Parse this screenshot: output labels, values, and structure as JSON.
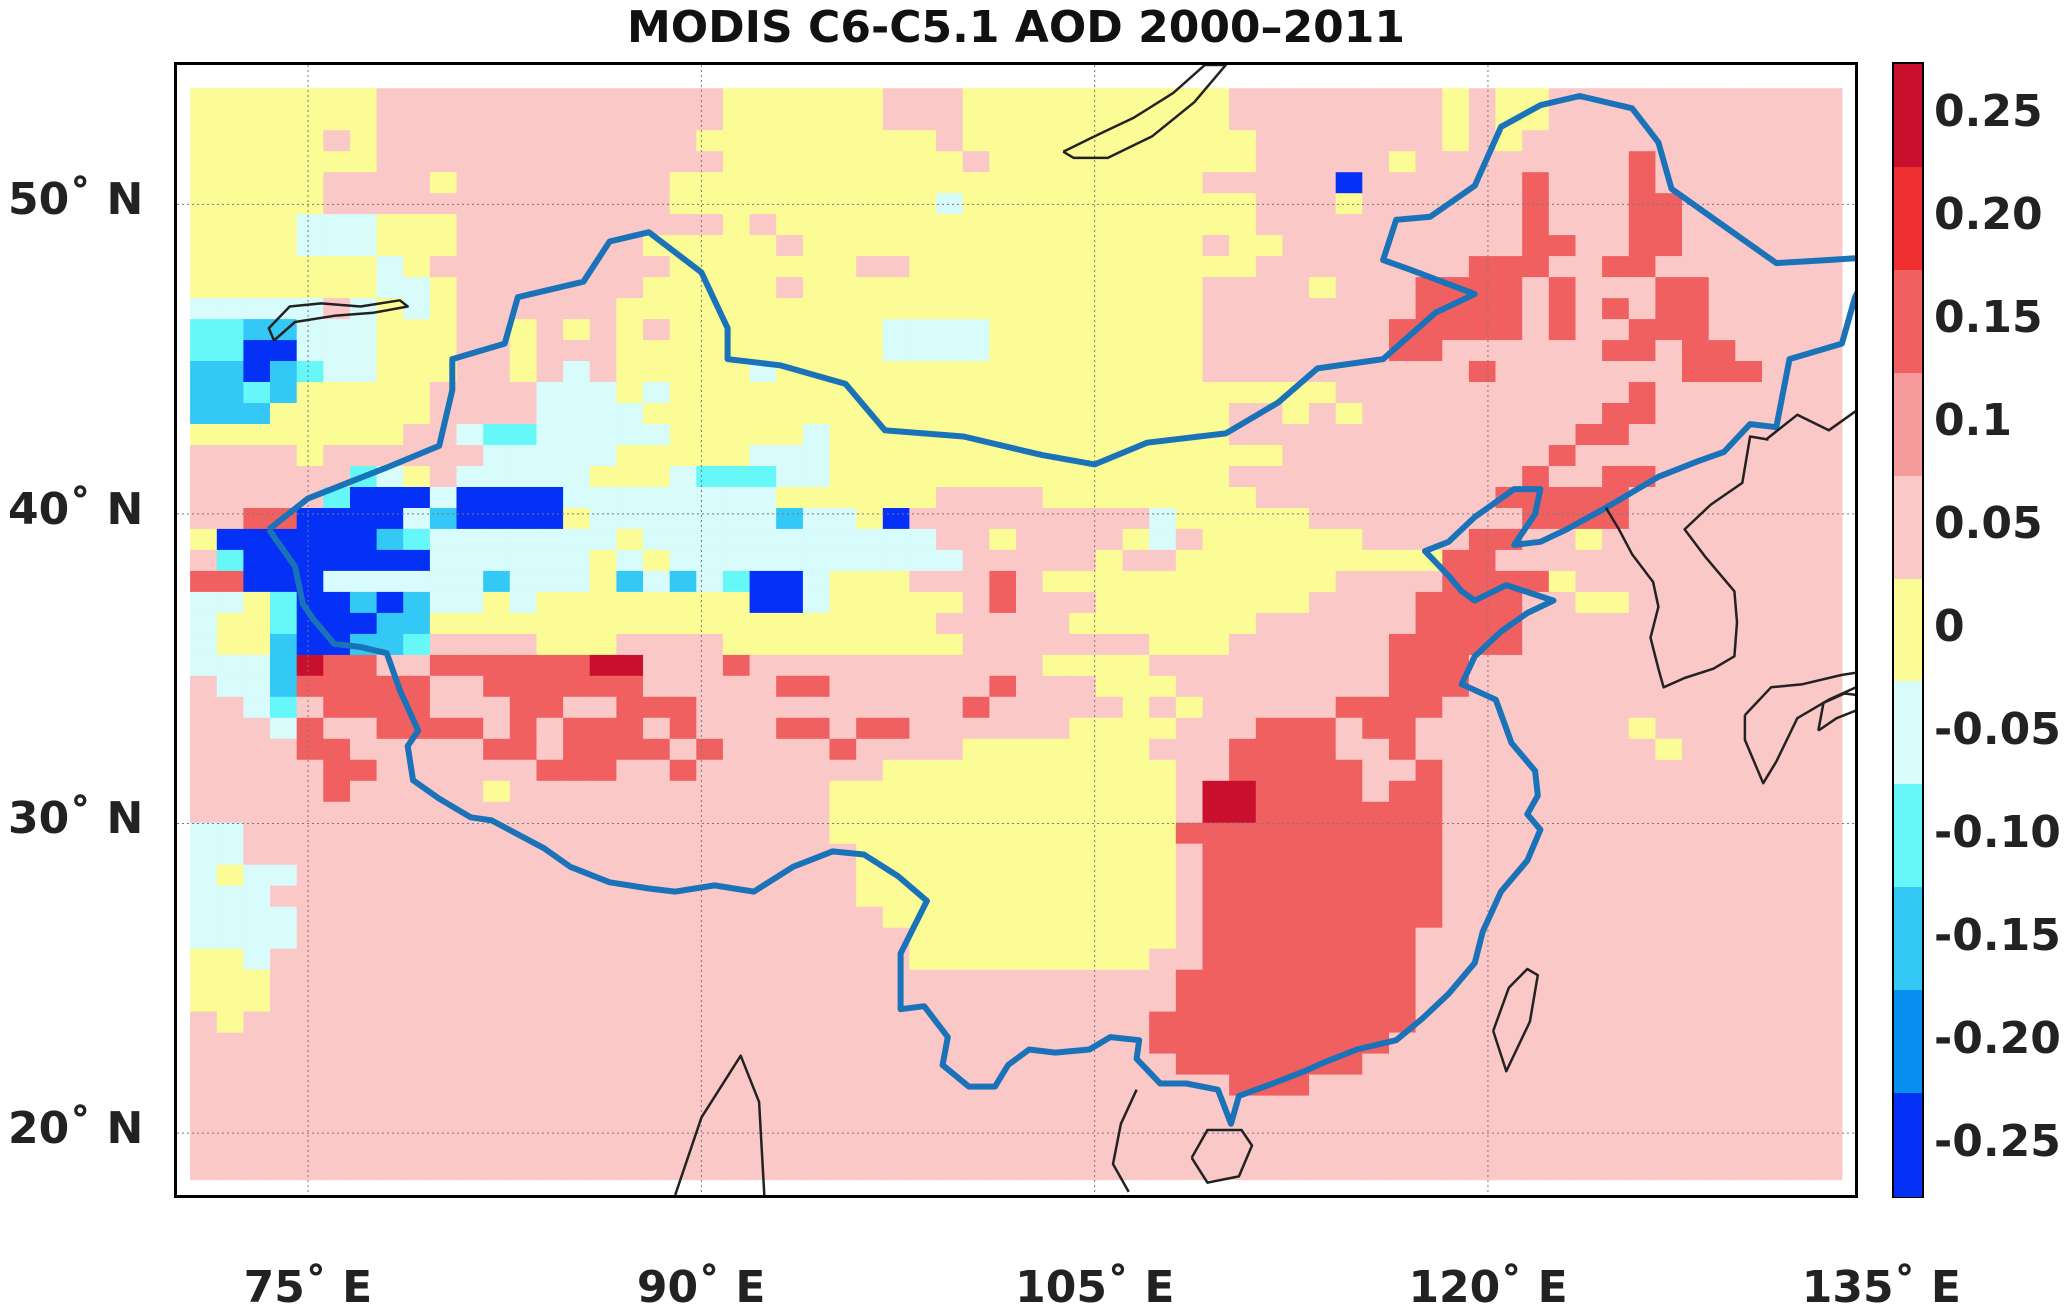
{
  "title": "MODIS C6-C5.1 AOD 2000–2011",
  "map": {
    "projection": "equirectangular",
    "lon_range": [
      70,
      134
    ],
    "lat_range": [
      18,
      54.5
    ],
    "grid_lines": {
      "lons": [
        75,
        90,
        105,
        120,
        135
      ],
      "lats": [
        20,
        30,
        40,
        50
      ]
    },
    "lat_labels": [
      {
        "lat": 50,
        "text": "50˚ N"
      },
      {
        "lat": 40,
        "text": "40˚ N"
      },
      {
        "lat": 30,
        "text": "30˚ N"
      },
      {
        "lat": 20,
        "text": "20˚ N"
      }
    ],
    "lon_labels": [
      {
        "lon": 75,
        "text": "75˚ E"
      },
      {
        "lon": 90,
        "text": "90˚ E"
      },
      {
        "lon": 105,
        "text": "105˚ E"
      },
      {
        "lon": 120,
        "text": "120˚ E"
      },
      {
        "lon": 135,
        "text": "135˚ E"
      }
    ],
    "colorbar": {
      "range": [
        -0.275,
        0.275
      ],
      "ticks": [
        "0.25",
        "0.20",
        "0.15",
        "0.1",
        "0.05",
        "0",
        "-0.05",
        "-0.10",
        "-0.15",
        "-0.20",
        "-0.25"
      ],
      "colors_top_to_bottom": [
        "#c8102e",
        "#f03030",
        "#f06060",
        "#f59a9a",
        "#fbc8c8",
        "#fcfc96",
        "#d8fbfb",
        "#66f8f8",
        "#33c8f5",
        "#0890f0",
        "#0530f5"
      ]
    },
    "regions": [
      {
        "name": "China",
        "color": "#1a73b8",
        "points": [
          [
            73.5,
            39.5
          ],
          [
            75,
            40.5
          ],
          [
            76.5,
            41
          ],
          [
            78,
            41.5
          ],
          [
            80,
            42.2
          ],
          [
            80.5,
            44
          ],
          [
            80.5,
            45
          ],
          [
            82.5,
            45.5
          ],
          [
            83,
            47
          ],
          [
            85.5,
            47.5
          ],
          [
            86.5,
            48.8
          ],
          [
            88,
            49.1
          ],
          [
            90,
            47.8
          ],
          [
            91,
            46
          ],
          [
            91,
            45
          ],
          [
            93,
            44.8
          ],
          [
            95.5,
            44.2
          ],
          [
            97,
            42.7
          ],
          [
            100,
            42.5
          ],
          [
            103,
            41.9
          ],
          [
            105,
            41.6
          ],
          [
            107,
            42.3
          ],
          [
            110,
            42.6
          ],
          [
            112,
            43.6
          ],
          [
            113.5,
            44.7
          ],
          [
            116,
            45
          ],
          [
            118,
            46.5
          ],
          [
            119.5,
            47.1
          ],
          [
            117,
            47.9
          ],
          [
            116,
            48.2
          ],
          [
            116.5,
            49.5
          ],
          [
            117.8,
            49.6
          ],
          [
            119.5,
            50.6
          ],
          [
            120.5,
            52.5
          ],
          [
            122,
            53.2
          ],
          [
            123.5,
            53.5
          ],
          [
            125.5,
            53.1
          ],
          [
            126.5,
            52
          ],
          [
            127,
            50.5
          ],
          [
            129,
            49.3
          ],
          [
            131,
            48.1
          ],
          [
            133,
            48.2
          ],
          [
            134.8,
            48.3
          ],
          [
            134,
            47
          ],
          [
            133.5,
            45.5
          ],
          [
            131.5,
            45
          ],
          [
            131,
            42.8
          ],
          [
            130,
            42.9
          ],
          [
            129,
            42
          ],
          [
            128,
            41.7
          ],
          [
            126.5,
            41.2
          ],
          [
            124.5,
            40.2
          ],
          [
            123,
            39.5
          ],
          [
            122,
            39.1
          ],
          [
            121,
            39
          ],
          [
            121.8,
            40
          ],
          [
            122,
            40.8
          ],
          [
            121,
            40.8
          ],
          [
            119.5,
            39.9
          ],
          [
            118.5,
            39.1
          ],
          [
            117.6,
            38.8
          ],
          [
            118.5,
            38
          ],
          [
            119,
            37.5
          ],
          [
            119.5,
            37.2
          ],
          [
            120.7,
            37.7
          ],
          [
            122.5,
            37.2
          ],
          [
            121.5,
            36.8
          ],
          [
            120.5,
            36.2
          ],
          [
            119.5,
            35.4
          ],
          [
            119,
            34.5
          ],
          [
            120.3,
            34
          ],
          [
            120.9,
            32.6
          ],
          [
            121.8,
            31.7
          ],
          [
            121.9,
            30.9
          ],
          [
            121.5,
            30.3
          ],
          [
            122,
            29.8
          ],
          [
            121.5,
            28.8
          ],
          [
            120.5,
            27.8
          ],
          [
            119.8,
            26.5
          ],
          [
            119.5,
            25.5
          ],
          [
            118.5,
            24.5
          ],
          [
            117.5,
            23.7
          ],
          [
            116.5,
            23
          ],
          [
            115,
            22.7
          ],
          [
            113.8,
            22.3
          ],
          [
            113,
            22
          ],
          [
            111.8,
            21.6
          ],
          [
            110.5,
            21.2
          ],
          [
            110.2,
            20.3
          ],
          [
            109.7,
            21.4
          ],
          [
            108.5,
            21.6
          ],
          [
            107.5,
            21.6
          ],
          [
            106.6,
            22.4
          ],
          [
            106.7,
            23
          ],
          [
            105.6,
            23.1
          ],
          [
            104.8,
            22.7
          ],
          [
            103.5,
            22.6
          ],
          [
            102.5,
            22.7
          ],
          [
            101.7,
            22.2
          ],
          [
            101.2,
            21.5
          ],
          [
            100.2,
            21.5
          ],
          [
            99.2,
            22.2
          ],
          [
            99.4,
            23.1
          ],
          [
            98.5,
            24.1
          ],
          [
            97.6,
            24
          ],
          [
            97.6,
            25.8
          ],
          [
            98.6,
            27.5
          ],
          [
            97.5,
            28.3
          ],
          [
            96.2,
            29
          ],
          [
            95,
            29.1
          ],
          [
            93.5,
            28.6
          ],
          [
            92,
            27.8
          ],
          [
            90.5,
            28
          ],
          [
            89,
            27.8
          ],
          [
            88,
            27.9
          ],
          [
            86.5,
            28.1
          ],
          [
            85,
            28.6
          ],
          [
            84,
            29.2
          ],
          [
            82,
            30.1
          ],
          [
            81.2,
            30.2
          ],
          [
            80,
            30.8
          ],
          [
            79,
            31.4
          ],
          [
            78.8,
            32.5
          ],
          [
            79.2,
            33
          ],
          [
            78.5,
            34.3
          ],
          [
            78,
            35.5
          ],
          [
            77,
            35.7
          ],
          [
            76,
            35.8
          ],
          [
            75.2,
            36.6
          ],
          [
            74.8,
            37.1
          ],
          [
            74.5,
            38.3
          ],
          [
            73.5,
            39.5
          ]
        ]
      },
      {
        "name": "Hainan",
        "color": "#222222",
        "points": [
          [
            108.7,
            19.2
          ],
          [
            109.3,
            18.4
          ],
          [
            110.5,
            18.6
          ],
          [
            111,
            19.6
          ],
          [
            110.6,
            20.1
          ],
          [
            109.3,
            20.1
          ],
          [
            108.7,
            19.2
          ]
        ]
      },
      {
        "name": "Taiwan",
        "color": "#222222",
        "points": [
          [
            120.2,
            23.3
          ],
          [
            120.7,
            22
          ],
          [
            121.6,
            23.6
          ],
          [
            121.9,
            25.1
          ],
          [
            121.5,
            25.3
          ],
          [
            120.8,
            24.7
          ],
          [
            120.2,
            23.3
          ]
        ]
      },
      {
        "name": "Korea",
        "color": "#222222",
        "points": [
          [
            124.5,
            40.2
          ],
          [
            125,
            39.5
          ],
          [
            125.5,
            38.7
          ],
          [
            126.3,
            37.8
          ],
          [
            126.5,
            37
          ],
          [
            126.2,
            36
          ],
          [
            126.5,
            35
          ],
          [
            126.7,
            34.4
          ],
          [
            127.5,
            34.7
          ],
          [
            128.6,
            35
          ],
          [
            129.4,
            35.4
          ],
          [
            129.5,
            36.5
          ],
          [
            129.4,
            37.5
          ],
          [
            128.3,
            38.6
          ],
          [
            127.5,
            39.5
          ],
          [
            128.5,
            40.3
          ],
          [
            129.7,
            41
          ],
          [
            130,
            42.5
          ],
          [
            130.7,
            42.4
          ]
        ]
      },
      {
        "name": "Baikal",
        "color": "#222222",
        "points": [
          [
            103.8,
            51.7
          ],
          [
            105,
            52.2
          ],
          [
            106.5,
            52.8
          ],
          [
            108,
            53.6
          ],
          [
            109.2,
            54.5
          ],
          [
            110,
            54.5
          ],
          [
            108.8,
            53.3
          ],
          [
            107.2,
            52.2
          ],
          [
            105.5,
            51.5
          ],
          [
            104.2,
            51.5
          ],
          [
            103.8,
            51.7
          ]
        ]
      },
      {
        "name": "Balkhash",
        "color": "#222222",
        "points": [
          [
            73.7,
            45.6
          ],
          [
            74.5,
            46.2
          ],
          [
            76,
            46.4
          ],
          [
            77.5,
            46.5
          ],
          [
            78.8,
            46.7
          ],
          [
            78.5,
            46.9
          ],
          [
            77,
            46.7
          ],
          [
            75.5,
            46.8
          ],
          [
            74.3,
            46.7
          ],
          [
            73.5,
            46
          ],
          [
            73.7,
            45.6
          ]
        ]
      },
      {
        "name": "Japan",
        "color": "#222222",
        "points": [
          [
            129.8,
            33.5
          ],
          [
            130.8,
            34.4
          ],
          [
            132,
            34.5
          ],
          [
            133.5,
            34.8
          ],
          [
            135,
            35
          ],
          [
            134.3,
            34.5
          ],
          [
            133,
            34
          ],
          [
            131.8,
            33.4
          ],
          [
            131,
            32
          ],
          [
            130.5,
            31.3
          ],
          [
            129.8,
            32.7
          ],
          [
            129.8,
            33.5
          ]
        ]
      },
      {
        "name": "Shikoku",
        "color": "#222222",
        "points": [
          [
            132.6,
            33
          ],
          [
            133.3,
            33.4
          ],
          [
            134.2,
            33.7
          ],
          [
            134.6,
            34.1
          ],
          [
            133.6,
            34.2
          ],
          [
            132.8,
            33.9
          ],
          [
            132.6,
            33
          ]
        ]
      },
      {
        "name": "Russia-coast",
        "color": "#222222",
        "points": [
          [
            130.6,
            42.4
          ],
          [
            131.8,
            43.2
          ],
          [
            133,
            42.7
          ],
          [
            134,
            43.3
          ],
          [
            135,
            44
          ]
        ]
      },
      {
        "name": "Vietnam-coast",
        "color": "#222222",
        "points": [
          [
            106.6,
            21.4
          ],
          [
            106,
            20.3
          ],
          [
            105.7,
            19
          ],
          [
            106.3,
            18.1
          ]
        ]
      },
      {
        "name": "Bangladesh",
        "color": "#222222",
        "points": [
          [
            89,
            18
          ],
          [
            90,
            20.5
          ],
          [
            91.5,
            22.5
          ],
          [
            92.2,
            21
          ],
          [
            92.4,
            18
          ]
        ]
      }
    ],
    "cells": [
      "YYYYYYYPPPPPPPPPPPPPYYYYYYPPPYYYYYYYYYYPPPPPPPPYPYYPPPPPPPPPPP",
      "YYYYYYYPPPPPPPPPPPPPYYYYYYPPPYYYYYYYYYYPPPPPPPPYPYYPPPPPPPPPPP",
      "YYYYYPYPPPPPPPPPPPPYYYYYYYYYPYYYYYYYYYYYPPPPPPPYPYPPPPPPPPPPPP",
      "YYYYYYYPPPPPPPPPPPPPYYYYYYYYYPYYYYYYYYYYPPPPPYPPPPPPPPRPPPPPPP",
      "YYYYYPPPPYPPPPPPPPYYYYYYYYYYYYYYYYYYYYPPPPPBPPPPPPRPPPRPPPPPPP",
      "YYYYYPPPPPPPPPPPPPYYYYYYYYYYCYYYYYYYYYYYPPPYPPPPPPRPPPRRPPPPPP",
      "YYYYCCCYYYPPPPPPPPPPYPYYYYYYYYYYYYYYYYYYPPPPPPPPPPRPPPRRPPPPPP",
      "YYYYCCCYYYPPPPPPPYYYYYPYYYYYYYYYYYYYYYPYYPPPPPPPPPRRPPRRPPPPPP",
      "YYYYYYYCYPPPPPPPPPYYYYYYYPPYYYYYYYYYYYYYPPPPPPPPRRRPPRRPPPPPPP",
      "YYYYYYYCCYPPPPPPPYYYYYPYYYYYYYYYYYYYYYPPPPYPPPRRRRPRPPPRRPPPPP",
      "CCCCCPCYCYPPPPPPYYYYYYYYYYYYYYYYYYYYYYPPPPPPPPRRRRPRPRPRRPPPPP",
      "TTSSCCCYYYPPYPYPYPYYYYYYYYCCCCYYYYYYYYPPPPPPPRRRRRPRPPRRRPPPPP",
      "TTBBCCCYYYPPYPPPYYYYYYYYYYCCCCYYYYYYYYPPPPPPPRRPPPPPPRRPRRPPPP",
      "SSBSTCCYYYPPYPCPYYYYYCYYYYYYYYYYYYYYYYPPPPPPPPPPRPPPPPPPRRRPPP",
      "SSTSYYYYYPPPPCCCYCYYYYYYYYYYYYYYYYYYYYYYYYYPPPPPPPPPPPRPPPPPPP",
      "SSSYYYYYYPPPPCCCCYYYYYYYYYYYYYYYYYYYYYYPPYPYPPPPPPPPPRRPPPPPPP",
      "YYYYYYYYPPCTTCCCCCYYYYYCYYYYYYYYYYYYYYYPPPPPPPPPPPPPRRPPPPPPPP",
      "PPPPYPPPPPPCCCCCYYYYYCCCYYYYYYYYYYYYYYYYYPPPPPPPPPPRPPPPPPPPPP",
      "PPPPPPTCYPCCCCCYYYCTTTCCYYYYYYYYYYYYYYYPPPPPPPPPPPRPPRRPPPPPPP",
      "PPPPPTBBBCBBBBCCCCCCCCYYYYYYPPPPYYYYYYYYPPPPPPPPPRRRRRPPPPPPPP",
      "PPRRBBBBCSBBBBYCCCCCCCSCCYBPPPPPPPPPCYYYYYPPPPPPPPRRRRPPPPPPPP",
      "YBBBBBBSTCCCCCCCYCCCCCCCCCCCPPYPPPPYCPYYYYYYPPPPRRPPYPPPPPPPPP",
      "PTBBBBBBBCCCCCCYCYCCCCCCCCCCCPPPPPYPPYYYYYYYYYYRRPPPPPPPPPPPPP",
      "RRBBBCCCCCCSCCCYSCSCTBBCYYYPPPRPYYYYYYYYYYYPPPPRRRRYPPPPPPPPPP",
      "CCYTBBSBSCCYCYYYYYYYYBBCYYYYYPRPPPYYYYYYYYPPPPRRRRPPYYPPPPPPPP",
      "CYYTBBBSSYYYYYYYYYYYYYYYYYYYPPPPPYYYYYYYPPPPPPRRRRPPPPPPPPPPPP",
      "CYYSBBSSTPPPPYYYPPPPYYYYYYYYYPPPPPPPYYYPPPPPPRRRRRPPPPPPPPPPPP",
      "CCCSDRRPPRRRRRRDDPPPRPPPPPPPPPPPYYYYPPPPPPPPPRRRPPPPPPPPPPPPPP",
      "PCCSRRRRRPPRRRRRRPPPPPRRPPPPPPRPPPYYYPPPPPPPPRRRPPPPPPPPPPPPPP",
      "PPCTPRRRRPPPRRPPRRRPPPPPPPPPPRPPPPPYPYPPPPPRRRRPPPPPPPPPPPPPPP",
      "PPPCRPPRRRRPRPRRRPRPPPRRPRRPPPPPPYYYYPPPRRRPRRPPPPPPPPYPPPPPPP",
      "PPPPRRPPPPPRRPRRRRPRPPPPRPPPPYYYYYYYPPPRRRRPPRPPPPPPPPPYPPPPPP",
      "PPPPPRRPPPPPPRRRPPRPPPPPPPYYYYYYYYYYYPPRRRRRPPRPPPPPPPPPPPPPPP",
      "PPPPPRPPPPPYPPPPPPPPPPPPYYYYYYYYYYYYYPDDRRRRPRRPPPPPPPPPPPPPPP",
      "PPPPPPPPPPPPPPPPPPPPPPPPYYYYYYYYYYYYYPDDRRRRRRRPPPPPPPPPPPPPPP",
      "CCPPPPPPPPPPPPPPPPPPPPPPYYYYYYYYYYYYYRRRRRRRRRRPPPPPPPPPPPPPPP",
      "CCPPPPPPPPPPPPPPPPPPPPPPPYYYYYYYYYYYYPRRRRRRRRRPPPPPPPPPPPPPPP",
      "CYCCPPPPPPPPPPPPPPPPPPPPPYYYYYYYYYYYYPRRRRRRRRRPPPPPPPPPPPPPPP",
      "CCCPPPPPPPPPPPPPPPPPPPPPPYYYYYYYYYYYYPRRRRRRRRRPPPPPPPPPPPPPPP",
      "CCCCPPPPPPPPPPPPPPPPPPPPPPYYYYYYYYYYYPRRRRRRRRRPPPPPPPPPPPPPPP",
      "CCCCPPPPPPPPPPPPPPPPPPPPPPPYYYYYYYYYYPRRRRRRRRPPPPPPPPPPPPPPPP",
      "YYCPPPPPPPPPPPPPPPPPPPPPPPPYYYYYYYYYPPRRRRRRRRPPPPPPPPPPPPPPPP",
      "YYYPPPPPPPPPPPPPPPPPPPPPPPPPPPPPPPPPPRRRRRRRRRPPPPPPPPPPPPPPPP",
      "YYYPPPPPPPPPPPPPPPPPPPPPPPPPPPPPPPPPPRRRRRRRRRPPPPPPPPPPPPPPPP",
      "PYPPPPPPPPPPPPPPPPPPPPPPPPPPPPPPPPPPRRRRRRRRRRPPPPPPPPPPPPPPPP",
      "PPPPPPPPPPPPPPPPPPPPPPPPPPPPPPPPPPPPRRRRRRRRRPPPPPPPPPPPPPPPPP",
      "PPPPPPPPPPPPPPPPPPPPPPPPPPPPPPPPPPPPPRRRRRRRPPPPPPPPPPPPPPPPPP",
      "PPPPPPPPPPPPPPPPPPPPPPPPPPPPPPPPPPPPPPPRRRPPPPPPPPPPPPPPPPPPPP",
      "PPPPPPPPPPPPPPPPPPPPPPPPPPPPPPPPPPPPPPPPPPPPPPPPPPPPPPPPPPPPPP",
      "PPPPPPPPPPPPPPPPPPPPPPPPPPPPPPPPPPPPPPPPPPPPPPPPPPPPPPPPPPPPPP",
      "PPPPPPPPPPPPPPPPPPPPPPPPPPPPPPPPPPPPPPPPPPPPPPPPPPPPPPPPPPPPPP",
      "PPPPPPPPPPPPPPPPPPPPPPPPPPPPPPPPPPPPPPPPPPPPPPPPPPPPPPPPPPPPPP"
    ],
    "palette": {
      "D": "#c8102e",
      "R": "#f06060",
      "P": "#fbc8c8",
      "Y": "#fcfc96",
      "C": "#d8fbfb",
      "T": "#66f8f8",
      "S": "#33c8f5",
      "B": "#0530f5"
    }
  }
}
